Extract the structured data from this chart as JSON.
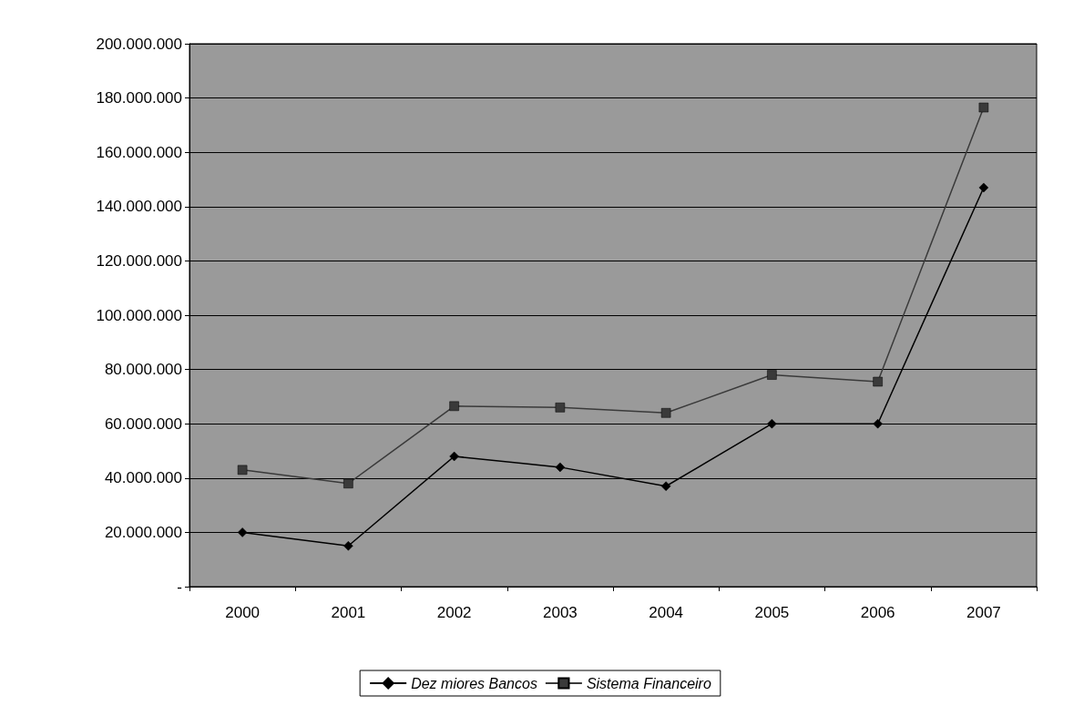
{
  "chart_data": {
    "type": "line",
    "categories": [
      "2000",
      "2001",
      "2002",
      "2003",
      "2004",
      "2005",
      "2006",
      "2007"
    ],
    "series": [
      {
        "name": "Dez miores Bancos",
        "color": "#000000",
        "marker": "diamond",
        "values": [
          20000000,
          15000000,
          48000000,
          44000000,
          37000000,
          60000000,
          60000000,
          147000000
        ]
      },
      {
        "name": "Sistema Financeiro",
        "color": "#3a3a3a",
        "marker": "square",
        "values": [
          43000000,
          38000000,
          66500000,
          66000000,
          64000000,
          78000000,
          75500000,
          176500000
        ]
      }
    ],
    "ylim": [
      0,
      200000000
    ],
    "yticks": [
      {
        "value": 0,
        "label": "-"
      },
      {
        "value": 20000000,
        "label": "20.000.000"
      },
      {
        "value": 40000000,
        "label": "40.000.000"
      },
      {
        "value": 60000000,
        "label": "60.000.000"
      },
      {
        "value": 80000000,
        "label": "80.000.000"
      },
      {
        "value": 100000000,
        "label": "100.000.000"
      },
      {
        "value": 120000000,
        "label": "120.000.000"
      },
      {
        "value": 140000000,
        "label": "140.000.000"
      },
      {
        "value": 160000000,
        "label": "160.000.000"
      },
      {
        "value": 180000000,
        "label": "180.000.000"
      },
      {
        "value": 200000000,
        "label": "200.000.000"
      }
    ],
    "grid": "y",
    "legend": "bottom",
    "line_style": "solid"
  }
}
